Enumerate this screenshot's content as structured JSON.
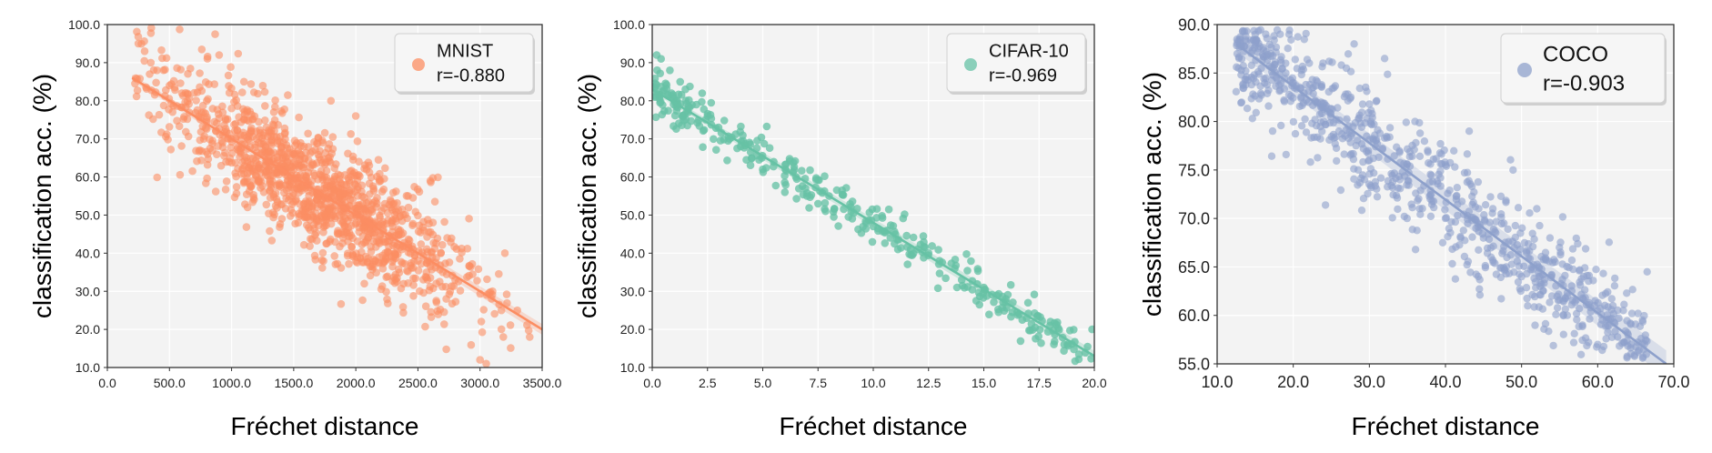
{
  "chart_data": [
    {
      "type": "scatter",
      "xlabel": "Fréchet distance",
      "ylabel": "classification acc. (%)",
      "xlim": [
        0,
        3500
      ],
      "ylim": [
        10,
        100
      ],
      "xticks": [
        "0.0",
        "500.0",
        "1000.0",
        "1500.0",
        "2000.0",
        "2500.0",
        "3000.0",
        "3500.0"
      ],
      "yticks": [
        "10.0",
        "20.0",
        "30.0",
        "40.0",
        "50.0",
        "60.0",
        "70.0",
        "80.0",
        "90.0",
        "100.0"
      ],
      "grid": true,
      "legend_position": "top-right",
      "color": "#FC8D62",
      "series": [
        {
          "name": "MNIST",
          "r_label": "r=-0.880",
          "r": -0.88,
          "fit_line": [
            [
              200,
              86
            ],
            [
              3500,
              20
            ]
          ],
          "point_cloud": {
            "count": 1300,
            "x_range": [
              200,
              3450
            ],
            "spread": 8
          },
          "sample_points": [
            [
              250,
              95
            ],
            [
              300,
              93
            ],
            [
              350,
              90
            ],
            [
              400,
              88
            ],
            [
              500,
              84
            ],
            [
              600,
              82
            ],
            [
              800,
              80
            ],
            [
              900,
              92
            ],
            [
              1000,
              78
            ],
            [
              1100,
              85
            ],
            [
              1200,
              70
            ],
            [
              1300,
              65
            ],
            [
              1400,
              68
            ],
            [
              1500,
              62
            ],
            [
              1600,
              60
            ],
            [
              1700,
              55
            ],
            [
              1800,
              80
            ],
            [
              1900,
              52
            ],
            [
              2000,
              76
            ],
            [
              2100,
              48
            ],
            [
              2200,
              45
            ],
            [
              2300,
              42
            ],
            [
              2500,
              38
            ],
            [
              2600,
              59
            ],
            [
              2700,
              35
            ],
            [
              2800,
              33
            ],
            [
              3000,
              12
            ],
            [
              3050,
              11
            ],
            [
              3100,
              30
            ],
            [
              3200,
              40
            ],
            [
              3300,
              25
            ],
            [
              3400,
              18
            ]
          ]
        }
      ]
    },
    {
      "type": "scatter",
      "xlabel": "Fréchet distance",
      "ylabel": "classification acc. (%)",
      "xlim": [
        0,
        20
      ],
      "ylim": [
        10,
        100
      ],
      "xticks": [
        "0.0",
        "2.5",
        "5.0",
        "7.5",
        "10.0",
        "12.5",
        "15.0",
        "17.5",
        "20.0"
      ],
      "yticks": [
        "10.0",
        "20.0",
        "30.0",
        "40.0",
        "50.0",
        "60.0",
        "70.0",
        "80.0",
        "90.0",
        "100.0"
      ],
      "grid": true,
      "legend_position": "top-right",
      "color": "#66C2A5",
      "series": [
        {
          "name": "CIFAR-10",
          "r_label": "r=-0.969",
          "r": -0.969,
          "fit_line": [
            [
              0,
              83
            ],
            [
              20,
              13
            ]
          ],
          "point_cloud": {
            "count": 330,
            "x_range": [
              0.1,
              19.9
            ],
            "spread": 3
          },
          "sample_points": [
            [
              0.2,
              92
            ],
            [
              0.4,
              91
            ],
            [
              0.8,
              88
            ],
            [
              1.5,
              83
            ],
            [
              2.0,
              79
            ],
            [
              2.5,
              76
            ],
            [
              3.0,
              73
            ],
            [
              3.5,
              70
            ],
            [
              4.0,
              68
            ],
            [
              4.5,
              65
            ],
            [
              5.0,
              62
            ],
            [
              5.5,
              64
            ],
            [
              6.0,
              56
            ],
            [
              6.5,
              60
            ],
            [
              7.0,
              55
            ],
            [
              7.5,
              53
            ],
            [
              8.0,
              55
            ],
            [
              9.0,
              51
            ],
            [
              10.0,
              47
            ],
            [
              11.0,
              45
            ],
            [
              12.0,
              41
            ],
            [
              12.5,
              40
            ],
            [
              13.0,
              38
            ],
            [
              14.0,
              33
            ],
            [
              15.0,
              31
            ],
            [
              16.0,
              28
            ],
            [
              17.0,
              27
            ],
            [
              18.0,
              21
            ],
            [
              19.9,
              20
            ]
          ]
        }
      ]
    },
    {
      "type": "scatter",
      "xlabel": "Fréchet distance",
      "ylabel": "classification acc. (%)",
      "xlim": [
        10,
        70
      ],
      "ylim": [
        55,
        90
      ],
      "xticks": [
        "10.0",
        "20.0",
        "30.0",
        "40.0",
        "50.0",
        "60.0",
        "70.0"
      ],
      "yticks": [
        "55.0",
        "60.0",
        "65.0",
        "70.0",
        "75.0",
        "80.0",
        "85.0",
        "90.0"
      ],
      "grid": true,
      "legend_position": "top-right",
      "color": "#8DA0CB",
      "series": [
        {
          "name": "COCO",
          "r_label": "r=-0.903",
          "r": -0.903,
          "fit_line": [
            [
              12.5,
              88
            ],
            [
              69,
              55
            ]
          ],
          "point_cloud": {
            "count": 820,
            "x_range": [
              12.5,
              66.5
            ],
            "spread": 3
          },
          "sample_points": [
            [
              13,
              88.5
            ],
            [
              15,
              89
            ],
            [
              17,
              87
            ],
            [
              19,
              86
            ],
            [
              20,
              84
            ],
            [
              22,
              82
            ],
            [
              24,
              80
            ],
            [
              26,
              79
            ],
            [
              28,
              88
            ],
            [
              30,
              76
            ],
            [
              32,
              86.5
            ],
            [
              34,
              74
            ],
            [
              36,
              80
            ],
            [
              38,
              72
            ],
            [
              40,
              70
            ],
            [
              42,
              68
            ],
            [
              44,
              69
            ],
            [
              46,
              66
            ],
            [
              48,
              65
            ],
            [
              50,
              64
            ],
            [
              52,
              71
            ],
            [
              54,
              62
            ],
            [
              56,
              60
            ],
            [
              58,
              59
            ],
            [
              60,
              57
            ],
            [
              62,
              61
            ],
            [
              64,
              58
            ],
            [
              66.5,
              64.5
            ]
          ]
        }
      ]
    }
  ]
}
